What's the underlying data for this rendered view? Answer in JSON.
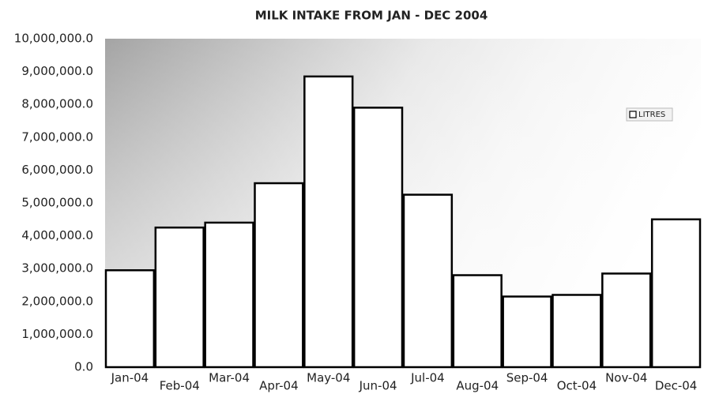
{
  "chart_data": {
    "type": "bar",
    "title": "MILK INTAKE FROM JAN - DEC 2004",
    "categories": [
      "Jan-04",
      "Feb-04",
      "Mar-04",
      "Apr-04",
      "May-04",
      "Jun-04",
      "Jul-04",
      "Aug-04",
      "Sep-04",
      "Oct-04",
      "Nov-04",
      "Dec-04"
    ],
    "series": [
      {
        "name": "LITRES",
        "color": "#ffffff",
        "values": [
          2950000,
          4250000,
          4400000,
          5600000,
          8850000,
          7900000,
          5250000,
          2800000,
          2150000,
          2200000,
          2850000,
          4500000
        ]
      }
    ],
    "ylim": [
      0,
      10000000
    ],
    "yticks": [
      {
        "value": 0,
        "label": "0.0"
      },
      {
        "value": 1000000,
        "label": "1,000,000.0"
      },
      {
        "value": 2000000,
        "label": "2,000,000.0"
      },
      {
        "value": 3000000,
        "label": "3,000,000.0"
      },
      {
        "value": 4000000,
        "label": "4,000,000.0"
      },
      {
        "value": 5000000,
        "label": "5,000,000.0"
      },
      {
        "value": 6000000,
        "label": "6,000,000.0"
      },
      {
        "value": 7000000,
        "label": "7,000,000.0"
      },
      {
        "value": 8000000,
        "label": "8,000,000.0"
      },
      {
        "value": 9000000,
        "label": "9,000,000.0"
      },
      {
        "value": 10000000,
        "label": "10,000,000.0"
      }
    ],
    "legend": "right"
  }
}
